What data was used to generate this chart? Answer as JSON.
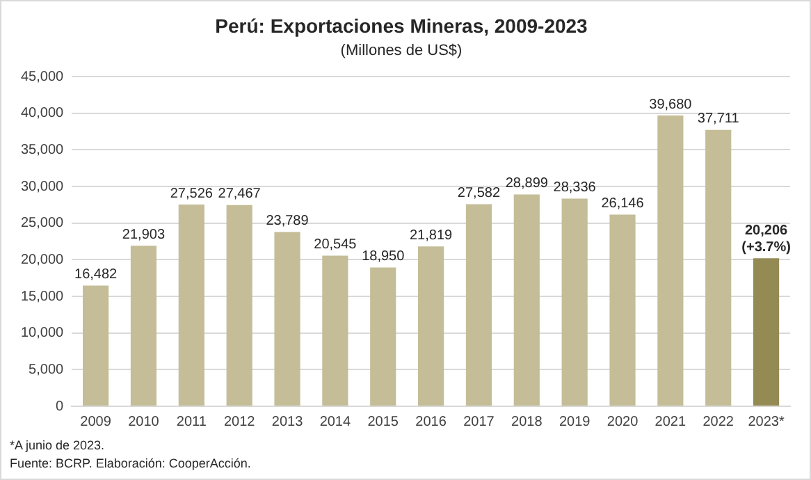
{
  "chart_data": {
    "type": "bar",
    "title": "Perú: Exportaciones Mineras, 2009-2023",
    "subtitle": "(Millones de US$)",
    "categories": [
      "2009",
      "2010",
      "2011",
      "2012",
      "2013",
      "2014",
      "2015",
      "2016",
      "2017",
      "2018",
      "2019",
      "2020",
      "2021",
      "2022",
      "2023*"
    ],
    "values": [
      16482,
      21903,
      27526,
      27467,
      23789,
      20545,
      18950,
      21819,
      27582,
      28899,
      28336,
      26146,
      39680,
      37711,
      20206
    ],
    "colors": [
      "#c4bd97",
      "#c4bd97",
      "#c4bd97",
      "#c4bd97",
      "#c4bd97",
      "#c4bd97",
      "#c4bd97",
      "#c4bd97",
      "#c4bd97",
      "#c4bd97",
      "#c4bd97",
      "#c4bd97",
      "#c4bd97",
      "#c4bd97",
      "#948a54"
    ],
    "ylim": [
      0,
      45000
    ],
    "yticks": [
      {
        "value": 0,
        "label": "0"
      },
      {
        "value": 5000,
        "label": "5,000"
      },
      {
        "value": 10000,
        "label": "10,000"
      },
      {
        "value": 15000,
        "label": "15,000"
      },
      {
        "value": 20000,
        "label": "20,000"
      },
      {
        "value": 25000,
        "label": "25,000"
      },
      {
        "value": 30000,
        "label": "30,000"
      },
      {
        "value": 35000,
        "label": "35,000"
      },
      {
        "value": 40000,
        "label": "40,000"
      },
      {
        "value": 45000,
        "label": "45,000"
      }
    ],
    "value_labels": [
      "16,482",
      "21,903",
      "27,526",
      "27,467",
      "23,789",
      "20,545",
      "18,950",
      "21,819",
      "27,582",
      "28,899",
      "28,336",
      "26,146",
      "39,680",
      "37,711",
      "20,206"
    ],
    "grid": "y",
    "legend": false,
    "annotations": [
      {
        "text": "(+3.7%)",
        "x": "2023*",
        "y": 20206
      },
      "*A junio de 2023.",
      "Fuente: BCRP. Elaboración: CooperAcción."
    ]
  }
}
